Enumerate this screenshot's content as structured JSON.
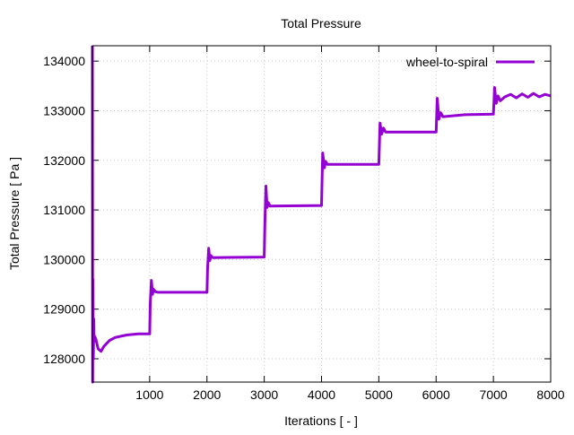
{
  "chart_data": {
    "type": "line",
    "title": "Total Pressure",
    "xlabel": "Iterations [ - ]",
    "ylabel": "Total Pressure [ Pa ]",
    "xlim": [
      0,
      8000
    ],
    "ylim": [
      127530,
      134310
    ],
    "xticks": [
      1000,
      2000,
      3000,
      4000,
      5000,
      6000,
      7000,
      8000
    ],
    "yticks": [
      128000,
      129000,
      130000,
      131000,
      132000,
      133000,
      134000
    ],
    "grid": true,
    "legend_position": "top-right",
    "series": [
      {
        "name": "wheel-to-spiral",
        "color": "#9400d3",
        "x": [
          0,
          5,
          10,
          15,
          20,
          25,
          30,
          40,
          60,
          100,
          150,
          200,
          300,
          400,
          600,
          800,
          1000,
          1010,
          1030,
          1050,
          1070,
          1100,
          1150,
          2000,
          2010,
          2030,
          2050,
          2070,
          2100,
          3000,
          3010,
          3030,
          3050,
          3070,
          3100,
          4000,
          4010,
          4020,
          4050,
          4070,
          4100,
          5000,
          5010,
          5020,
          5050,
          5080,
          5120,
          6000,
          6010,
          6020,
          6050,
          6080,
          6120,
          6500,
          7000,
          7010,
          7020,
          7050,
          7080,
          7120,
          7200,
          7300,
          7400,
          7500,
          7600,
          7700,
          7800,
          7900,
          8000
        ],
        "y": [
          134310,
          127530,
          129600,
          128000,
          128300,
          128800,
          128350,
          128450,
          128400,
          128200,
          128150,
          128250,
          128370,
          128430,
          128480,
          128500,
          128500,
          129100,
          129580,
          129300,
          129400,
          129350,
          129340,
          129340,
          129800,
          130230,
          129980,
          130080,
          130040,
          130050,
          130700,
          131480,
          131050,
          131150,
          131080,
          131090,
          131600,
          132150,
          131850,
          131980,
          131920,
          131920,
          132300,
          132750,
          132530,
          132650,
          132570,
          132570,
          132900,
          133250,
          132830,
          132960,
          132880,
          132920,
          132930,
          133200,
          133470,
          133150,
          133300,
          133200,
          133280,
          133330,
          133260,
          133340,
          133270,
          133350,
          133280,
          133330,
          133300
        ]
      }
    ]
  }
}
